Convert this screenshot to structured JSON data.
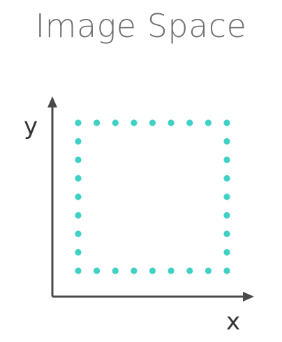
{
  "title": "Image Space",
  "axes": {
    "x_label": "x",
    "y_label": "y",
    "color": "#4a4a4a"
  },
  "dots": {
    "color": "#3fd0c6",
    "per_side": 9,
    "shape": "square-outline"
  }
}
